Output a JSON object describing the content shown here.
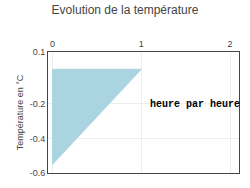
{
  "chart_data": {
    "type": "area",
    "title": "Evolution de la température",
    "y_label": "Température en °C",
    "annotation": "heure par heure",
    "x": [
      0,
      0,
      1,
      0
    ],
    "values": [
      0,
      -0.55,
      0,
      0
    ],
    "color": "#aad4e0",
    "xlim": [
      -0.05,
      2.1
    ],
    "ylim": [
      -0.6,
      0.1
    ],
    "xticks": [
      0,
      1,
      2
    ],
    "yticks": [
      0.1,
      -0.2,
      -0.4,
      -0.6
    ],
    "grid": true
  }
}
